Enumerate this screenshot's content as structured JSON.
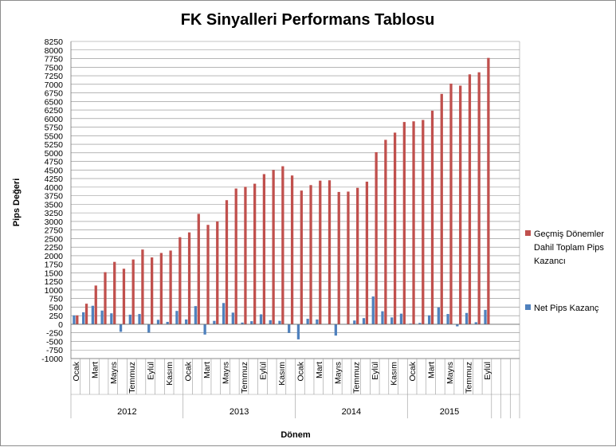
{
  "chart_data": {
    "type": "bar",
    "title": "FK Sinyalleri Performans Tablosu",
    "xlabel": "Dönem",
    "ylabel": "Pips Değeri",
    "ylim": [
      -1000,
      8250
    ],
    "ytick_step": 250,
    "grid": true,
    "legend_position": "right",
    "month_labels": [
      "Ocak",
      "Mart",
      "Mayıs",
      "Temmuz",
      "Eylül",
      "Kasım"
    ],
    "years": [
      "2012",
      "2013",
      "2014",
      "2015"
    ],
    "empty_trailing_slots": 3,
    "series": [
      {
        "name": "Geçmiş Dönemler Dahil Toplam Pips Kazancı",
        "color": "#c0504d",
        "values": [
          260,
          600,
          1130,
          1520,
          1820,
          1620,
          1890,
          2180,
          1950,
          2080,
          2150,
          2540,
          2680,
          3220,
          2900,
          3000,
          3620,
          3960,
          4010,
          4100,
          4380,
          4500,
          4610,
          4340,
          3900,
          4060,
          4190,
          4200,
          3860,
          3870,
          3980,
          4160,
          5020,
          5380,
          5590,
          5900,
          5920,
          5960,
          6230,
          6720,
          7020,
          6960,
          7290,
          7350,
          7770
        ]
      },
      {
        "name": "Net Pips Kazanç",
        "color": "#4f81bd",
        "values": [
          260,
          350,
          540,
          400,
          320,
          -220,
          280,
          300,
          -240,
          130,
          70,
          390,
          140,
          530,
          -300,
          100,
          620,
          340,
          50,
          90,
          290,
          120,
          100,
          -250,
          -440,
          160,
          140,
          10,
          -330,
          10,
          110,
          180,
          810,
          380,
          200,
          310,
          20,
          40,
          260,
          490,
          300,
          -60,
          330,
          60,
          420
        ]
      }
    ]
  }
}
